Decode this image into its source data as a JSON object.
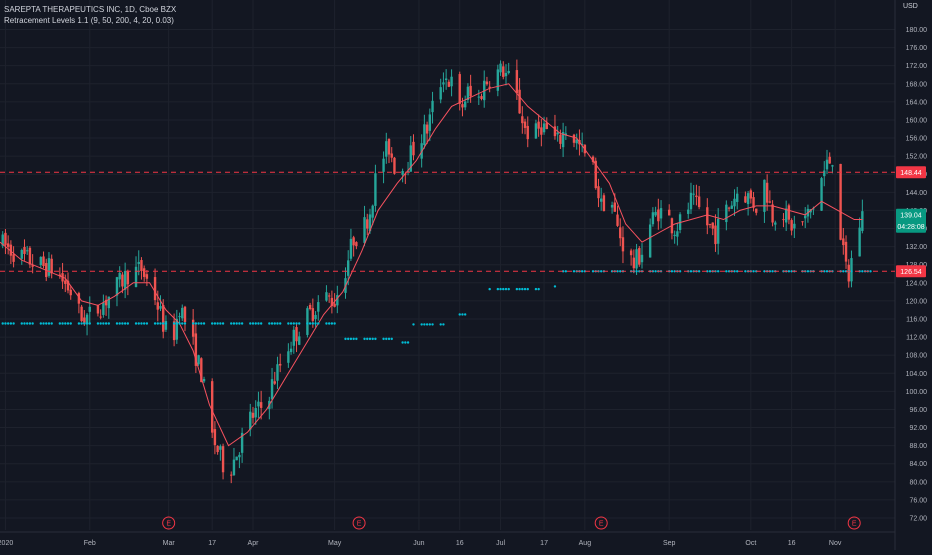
{
  "legend": {
    "symbol": "SAREPTA THERAPEUTICS INC, 1D, Cboe BZX",
    "indicator": "Retracement Levels 1.1 (9, 50, 200, 4, 20, 0.03)"
  },
  "currency": "USD",
  "colors": {
    "background": "#131722",
    "grid": "#1e222d",
    "up": "#26a69a",
    "down": "#ef5350",
    "ma_line": "#f7525f",
    "dots": "#00bcd4",
    "level_line": "#f23645",
    "label_text": "#ffffff",
    "axis_text": "#b2b5be",
    "earnings": "#f23645"
  },
  "chart_data": {
    "type": "candlestick",
    "title": "SAREPTA THERAPEUTICS INC, 1D, Cboe BZX",
    "y_axis": {
      "ticks": [
        "72.00",
        "76.00",
        "80.00",
        "84.00",
        "88.00",
        "92.00",
        "96.00",
        "100.00",
        "104.00",
        "108.00",
        "112.00",
        "116.00",
        "120.00",
        "124.00",
        "128.00",
        "132.00",
        "136.00",
        "140.00",
        "144.00",
        "148.00",
        "152.00",
        "156.00",
        "160.00",
        "164.00",
        "168.00",
        "172.00",
        "176.00",
        "180.00"
      ],
      "range": [
        70,
        182
      ]
    },
    "x_axis": {
      "ticks": [
        {
          "label": "2020",
          "day": 0
        },
        {
          "label": "Feb",
          "day": 31
        },
        {
          "label": "Mar",
          "day": 60
        },
        {
          "label": "17",
          "day": 76
        },
        {
          "label": "Apr",
          "day": 91
        },
        {
          "label": "May",
          "day": 121
        },
        {
          "label": "Jun",
          "day": 152
        },
        {
          "label": "16",
          "day": 167
        },
        {
          "label": "Jul",
          "day": 182
        },
        {
          "label": "17",
          "day": 198
        },
        {
          "label": "Aug",
          "day": 213
        },
        {
          "label": "Sep",
          "day": 244
        },
        {
          "label": "Oct",
          "day": 274
        },
        {
          "label": "16",
          "day": 289
        },
        {
          "label": "Nov",
          "day": 305
        }
      ],
      "range_days": [
        -2,
        327
      ]
    },
    "price_path": [
      [
        -2,
        133
      ],
      [
        5,
        130
      ],
      [
        12,
        128
      ],
      [
        18,
        127
      ],
      [
        24,
        122
      ],
      [
        28,
        116
      ],
      [
        32,
        117
      ],
      [
        38,
        121
      ],
      [
        45,
        126
      ],
      [
        50,
        127
      ],
      [
        55,
        121
      ],
      [
        58,
        115
      ],
      [
        61,
        110
      ],
      [
        64,
        119
      ],
      [
        67,
        114
      ],
      [
        72,
        104
      ],
      [
        76,
        90
      ],
      [
        80,
        84
      ],
      [
        82,
        82
      ],
      [
        86,
        88
      ],
      [
        90,
        94
      ],
      [
        95,
        97
      ],
      [
        99,
        103
      ],
      [
        103,
        109
      ],
      [
        108,
        114
      ],
      [
        113,
        118
      ],
      [
        117,
        121
      ],
      [
        121,
        120
      ],
      [
        125,
        127
      ],
      [
        128,
        134
      ],
      [
        131,
        135
      ],
      [
        134,
        140
      ],
      [
        137,
        150
      ],
      [
        141,
        154
      ],
      [
        144,
        148
      ],
      [
        148,
        151
      ],
      [
        151,
        155
      ],
      [
        155,
        158
      ],
      [
        158,
        165
      ],
      [
        161,
        170
      ],
      [
        164,
        168
      ],
      [
        167,
        162
      ],
      [
        170,
        166
      ],
      [
        173,
        163
      ],
      [
        176,
        168
      ],
      [
        179,
        170
      ],
      [
        183,
        171
      ],
      [
        187,
        167
      ],
      [
        191,
        158
      ],
      [
        194,
        156
      ],
      [
        197,
        159
      ],
      [
        200,
        157
      ],
      [
        203,
        155
      ],
      [
        206,
        158
      ],
      [
        209,
        156
      ],
      [
        212,
        153
      ],
      [
        214,
        151
      ],
      [
        216,
        149
      ],
      [
        219,
        141
      ],
      [
        222,
        144
      ],
      [
        225,
        136
      ],
      [
        228,
        131
      ],
      [
        231,
        128
      ],
      [
        234,
        131
      ],
      [
        237,
        137
      ],
      [
        240,
        140
      ],
      [
        243,
        139
      ],
      [
        246,
        136
      ],
      [
        249,
        138
      ],
      [
        252,
        142
      ],
      [
        255,
        140
      ],
      [
        258,
        137
      ],
      [
        261,
        135
      ],
      [
        264,
        139
      ],
      [
        267,
        142
      ],
      [
        270,
        145
      ],
      [
        273,
        143
      ],
      [
        276,
        141
      ],
      [
        279,
        146
      ],
      [
        282,
        139
      ],
      [
        285,
        141
      ],
      [
        288,
        137
      ],
      [
        291,
        136
      ],
      [
        294,
        138
      ],
      [
        297,
        141
      ],
      [
        300,
        147
      ],
      [
        302,
        150
      ],
      [
        304,
        152
      ],
      [
        306,
        140
      ],
      [
        308,
        130
      ],
      [
        310,
        125
      ],
      [
        312,
        133
      ],
      [
        315,
        139
      ]
    ],
    "ma_path": [
      [
        -2,
        133
      ],
      [
        6,
        129
      ],
      [
        14,
        127
      ],
      [
        22,
        125
      ],
      [
        28,
        120
      ],
      [
        34,
        119
      ],
      [
        40,
        121
      ],
      [
        47,
        124
      ],
      [
        53,
        124
      ],
      [
        59,
        118
      ],
      [
        64,
        115
      ],
      [
        69,
        109
      ],
      [
        75,
        97
      ],
      [
        82,
        88
      ],
      [
        89,
        91
      ],
      [
        96,
        96
      ],
      [
        103,
        103
      ],
      [
        110,
        110
      ],
      [
        117,
        117
      ],
      [
        124,
        122
      ],
      [
        131,
        131
      ],
      [
        137,
        140
      ],
      [
        144,
        146
      ],
      [
        151,
        151
      ],
      [
        158,
        158
      ],
      [
        164,
        163
      ],
      [
        171,
        165
      ],
      [
        178,
        167
      ],
      [
        185,
        168
      ],
      [
        192,
        163
      ],
      [
        198,
        160
      ],
      [
        204,
        157
      ],
      [
        210,
        156
      ],
      [
        216,
        151
      ],
      [
        222,
        146
      ],
      [
        228,
        137
      ],
      [
        234,
        133
      ],
      [
        240,
        135
      ],
      [
        246,
        137
      ],
      [
        252,
        138
      ],
      [
        258,
        139
      ],
      [
        264,
        138
      ],
      [
        270,
        140
      ],
      [
        276,
        141
      ],
      [
        282,
        141
      ],
      [
        288,
        140
      ],
      [
        294,
        139
      ],
      [
        300,
        142
      ],
      [
        306,
        140
      ],
      [
        312,
        138
      ],
      [
        315,
        138
      ]
    ],
    "dot_segments": [
      {
        "from": -2,
        "to": 121,
        "value": 115
      },
      {
        "from": 125,
        "to": 142,
        "value": 111.6
      },
      {
        "from": 145,
        "to": 148,
        "value": 110.8
      },
      {
        "from": 150,
        "to": 161,
        "value": 114.8
      },
      {
        "from": 167,
        "to": 169,
        "value": 117
      },
      {
        "from": 178,
        "to": 196,
        "value": 122.6
      },
      {
        "from": 202,
        "to": 202,
        "value": 123.2
      },
      {
        "from": 205,
        "to": 318,
        "value": 126.54
      }
    ],
    "levels": [
      {
        "value": 148.44,
        "label": "148.44"
      },
      {
        "value": 126.54,
        "label": "126.54"
      }
    ],
    "current_price": {
      "value": 139.04,
      "label": "139.04",
      "countdown": "04:28:08"
    },
    "earnings_days": [
      60,
      130,
      219,
      312
    ],
    "earnings_label": "E"
  }
}
